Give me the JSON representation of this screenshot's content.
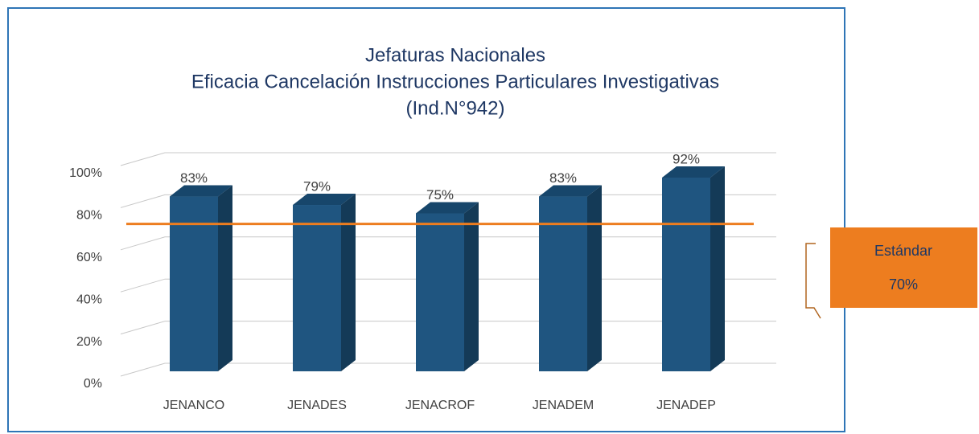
{
  "chart_data": {
    "type": "bar",
    "title": "Jefaturas Nacionales",
    "subtitle": "Eficacia Cancelación Instrucciones Particulares Investigativas",
    "subtitle2": "(Ind.N°942)",
    "categories": [
      "JENANCO",
      "JENADES",
      "JENACROF",
      "JENADEM",
      "JENADEP"
    ],
    "values": [
      83,
      79,
      75,
      83,
      92
    ],
    "value_labels": [
      "83%",
      "79%",
      "75%",
      "83%",
      "92%"
    ],
    "color": "#1f5580",
    "ylim": [
      0,
      100
    ],
    "yticks": [
      {
        "value": 0,
        "label": "0%"
      },
      {
        "value": 20,
        "label": "20%"
      },
      {
        "value": 40,
        "label": "40%"
      },
      {
        "value": 60,
        "label": "60%"
      },
      {
        "value": 80,
        "label": "80%"
      },
      {
        "value": 100,
        "label": "100%"
      }
    ],
    "grid": true,
    "standard": {
      "name": "Estándar",
      "value": 70,
      "value_label": "70%",
      "color": "#ed7d1f"
    }
  }
}
